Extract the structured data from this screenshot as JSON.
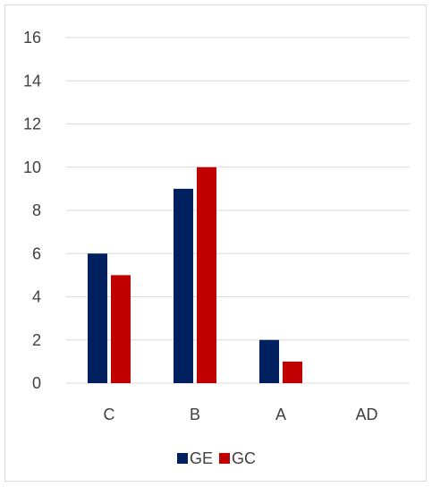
{
  "chart_data": {
    "type": "bar",
    "categories": [
      "C",
      "B",
      "A",
      "AD"
    ],
    "series": [
      {
        "name": "GE",
        "values": [
          6,
          9,
          2,
          0
        ],
        "color": "#002060"
      },
      {
        "name": "GC",
        "values": [
          5,
          10,
          1,
          0
        ],
        "color": "#c00000"
      }
    ],
    "ylim": [
      0,
      16
    ],
    "yticks": [
      "0",
      "2",
      "4",
      "6",
      "8",
      "10",
      "12",
      "14",
      "16"
    ],
    "grid": true,
    "legend_position": "bottom",
    "gridline_color": "#d9d9d9"
  }
}
